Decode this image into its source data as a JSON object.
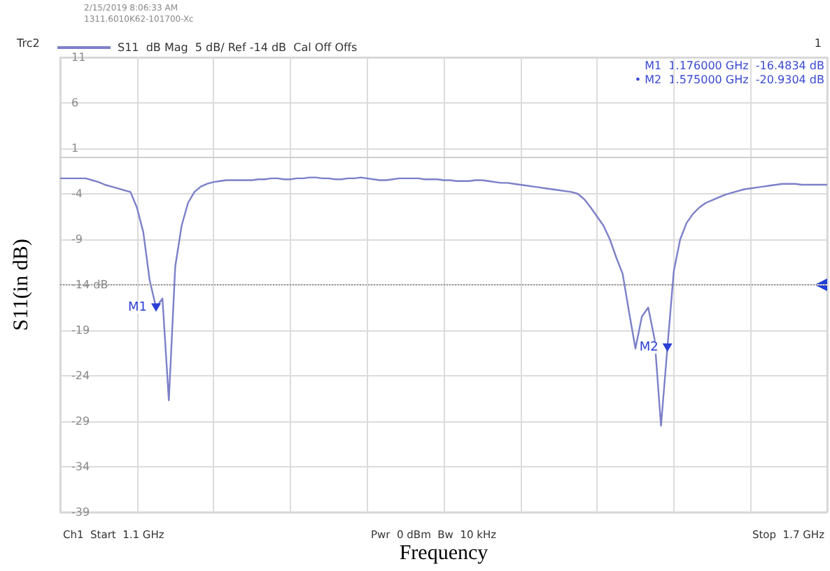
{
  "chart_data": {
    "type": "line",
    "xlabel": "Frequency",
    "ylabel": "S11(in dB)",
    "categories": [
      null,
      null,
      null,
      null,
      null,
      null,
      null,
      null,
      null,
      null,
      null,
      null,
      null,
      null,
      null,
      null,
      null,
      null,
      null,
      null,
      null,
      null,
      null,
      null,
      null,
      null,
      null,
      null,
      null,
      null,
      null,
      null,
      null,
      null,
      null,
      null,
      null,
      null,
      null,
      null,
      null,
      null,
      null,
      null,
      null,
      null,
      null,
      null,
      null,
      null,
      null,
      null,
      null,
      null,
      null,
      null,
      null,
      null,
      null,
      null,
      null,
      null,
      null,
      null,
      null,
      null,
      null,
      null,
      null,
      null,
      null,
      null,
      null,
      null,
      null,
      null,
      null,
      null,
      null,
      null,
      null,
      null,
      null,
      null,
      null,
      null,
      null,
      null,
      null,
      null,
      null,
      null,
      null,
      null,
      null,
      null,
      null,
      null,
      null,
      null,
      null,
      null,
      null,
      null,
      null,
      null,
      null,
      null,
      null,
      null,
      null,
      null,
      null,
      null,
      null,
      null,
      null,
      null,
      null,
      null,
      null
    ],
    "series": [
      {
        "name": "S11  dB Mag  5 dB/ Ref -14 dB  Cal Off Offs",
        "color": "#7c80c8",
        "values": [
          -2.3,
          -2.3,
          -2.3,
          -2.3,
          -2.3,
          -2.5,
          -2.7,
          -3.0,
          -3.2,
          -3.4,
          -3.6,
          -3.8,
          -5.5,
          -8.2,
          -13.5,
          -16.5,
          -15.5,
          -26.7,
          -12,
          -7.5,
          -5,
          -3.8,
          -3.2,
          -2.9,
          -2.7,
          -2.6,
          -2.5,
          -2.5,
          -2.5,
          -2.5,
          -2.5,
          -2.4,
          -2.4,
          -2.3,
          -2.3,
          -2.4,
          -2.4,
          -2.3,
          -2.3,
          -2.2,
          -2.2,
          -2.3,
          -2.3,
          -2.4,
          -2.4,
          -2.3,
          -2.3,
          -2.2,
          -2.3,
          -2.4,
          -2.5,
          -2.5,
          -2.4,
          -2.3,
          -2.3,
          -2.3,
          -2.3,
          -2.4,
          -2.4,
          -2.4,
          -2.5,
          -2.5,
          -2.6,
          -2.6,
          -2.6,
          -2.5,
          -2.5,
          -2.6,
          -2.7,
          -2.8,
          -2.8,
          -2.9,
          -3.0,
          -3.1,
          -3.2,
          -3.3,
          -3.4,
          -3.5,
          -3.6,
          -3.7,
          -3.8,
          -4,
          -4.6,
          -5.5,
          -6.5,
          -7.5,
          -9,
          -11,
          -12.8,
          -17,
          -21,
          -17.5,
          -16.5,
          -20,
          -29.5,
          -20.9,
          -12.5,
          -9,
          -7.2,
          -6.2,
          -5.5,
          -5.0,
          -4.7,
          -4.4,
          -4.1,
          -3.9,
          -3.7,
          -3.5,
          -3.4,
          -3.3,
          -3.2,
          -3.1,
          -3.0,
          -2.9,
          -2.9,
          -2.9,
          -3.0,
          -3.0,
          -3.0,
          -3.0,
          -3.0
        ]
      }
    ],
    "ylim": [
      -39,
      11
    ],
    "yticks": [
      -39,
      -34,
      -29,
      -24,
      -19,
      {
        "value": -14,
        "label": "-14 dB"
      },
      -9,
      -4,
      1,
      6,
      11
    ],
    "tick_labels": "y",
    "grid": true,
    "legend": "top left",
    "line_style": "solid",
    "ref_lines": [
      {
        "axis": "y",
        "value": -14,
        "color": "#9a9a9a",
        "line_style": "dotted"
      }
    ],
    "annotations": [
      "2/15/2019 8:06:33 AM",
      "1311.6010K62-101700-Xc",
      "Trc2",
      "1",
      "M1  1.176000 GHz  -16.4834 dB",
      "• M2  1.575000 GHz  -20.9304 dB",
      "Ch1  Start  1.1 GHz",
      "Pwr  0 dBm  Bw  10 kHz",
      "Stop  1.7 GHz",
      {
        "text": "M1",
        "y": -16.5
      },
      {
        "text": "M2",
        "y": -20.9
      }
    ]
  }
}
